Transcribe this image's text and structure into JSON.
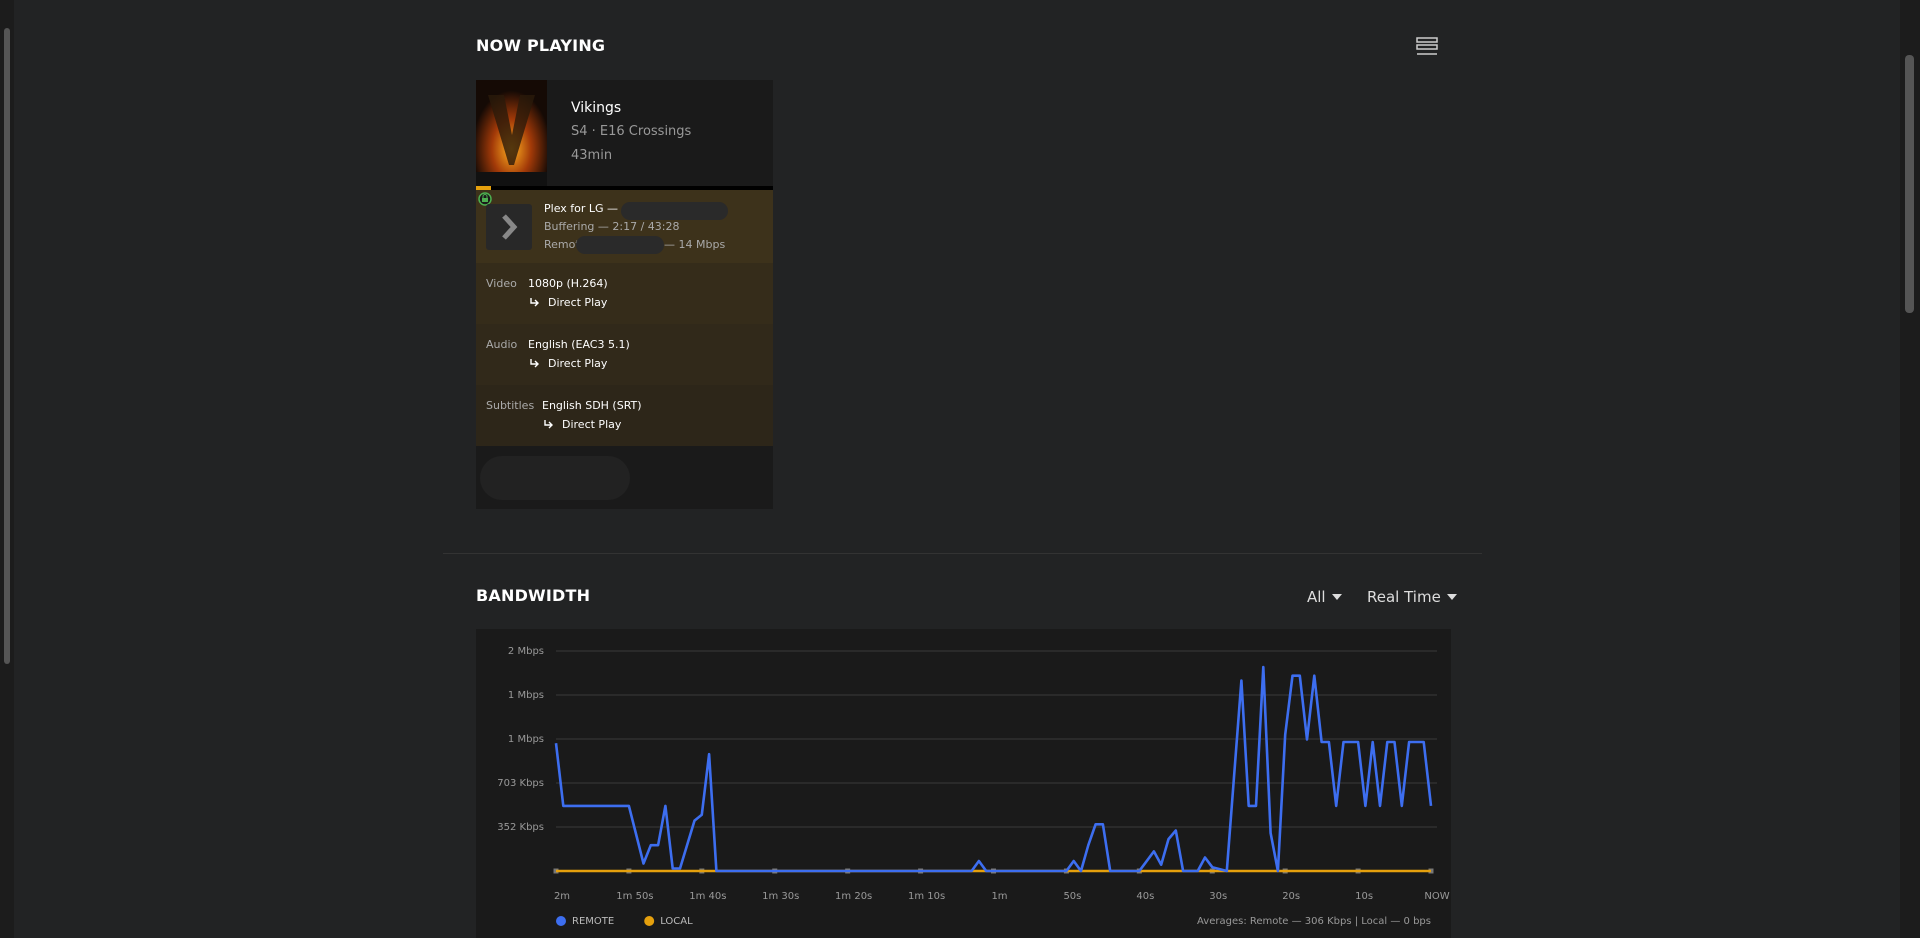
{
  "header": {
    "title": "NOW PLAYING"
  },
  "media": {
    "title": "Vikings",
    "subtitle": "S4 · E16 Crossings",
    "duration": "43min"
  },
  "player": {
    "name": "Plex for LG —",
    "state": "Buffering — 2:17 / 43:28",
    "location": "Remote",
    "bitrate": "— 14 Mbps"
  },
  "streams": [
    {
      "label": "Video",
      "value": "1080p (H.264)",
      "decision": "Direct Play"
    },
    {
      "label": "Audio",
      "value": "English (EAC3 5.1)",
      "decision": "Direct Play"
    },
    {
      "label": "Subtitles",
      "value": "English SDH (SRT)",
      "decision": "Direct Play"
    }
  ],
  "bandwidth": {
    "title": "BANDWIDTH",
    "filter": "All",
    "range": "Real Time",
    "averages": "Averages: Remote — 306 Kbps | Local — 0 bps"
  },
  "chart_data": {
    "type": "line",
    "x": [
      120,
      119,
      110,
      108,
      107,
      106,
      105,
      104,
      103,
      101,
      100,
      99,
      98,
      63,
      62,
      61,
      50,
      49,
      48,
      47,
      46,
      45,
      44,
      40,
      38,
      37,
      36,
      35,
      34,
      32,
      31,
      30,
      28,
      26,
      25,
      24,
      23,
      22,
      21,
      20,
      19,
      18,
      17,
      16,
      15,
      14,
      13,
      12,
      10,
      9,
      8,
      7,
      6,
      5,
      4,
      3,
      1,
      0
    ],
    "xlim": [
      120,
      0
    ],
    "xticks": [
      {
        "value": 120,
        "label": "2m"
      },
      {
        "value": 110,
        "label": "1m 50s"
      },
      {
        "value": 100,
        "label": "1m 40s"
      },
      {
        "value": 90,
        "label": "1m 30s"
      },
      {
        "value": 80,
        "label": "1m 20s"
      },
      {
        "value": 70,
        "label": "1m 10s"
      },
      {
        "value": 60,
        "label": "1m"
      },
      {
        "value": 50,
        "label": "50s"
      },
      {
        "value": 40,
        "label": "40s"
      },
      {
        "value": 30,
        "label": "30s"
      },
      {
        "value": 20,
        "label": "20s"
      },
      {
        "value": 10,
        "label": "10s"
      },
      {
        "value": 0,
        "label": "NOW"
      }
    ],
    "ylim": [
      0,
      1758
    ],
    "yticks": [
      {
        "value": 352,
        "label": "352 Kbps"
      },
      {
        "value": 703,
        "label": "703 Kbps"
      },
      {
        "value": 1055,
        "label": "1 Mbps"
      },
      {
        "value": 1406,
        "label": "1 Mbps"
      },
      {
        "value": 1758,
        "label": "2 Mbps"
      }
    ],
    "grid": true,
    "series": [
      {
        "name": "REMOTE",
        "color": "#3d6ef0",
        "values": [
          1021,
          520,
          520,
          60,
          206,
          206,
          520,
          20,
          20,
          403,
          450,
          933,
          0,
          0,
          80,
          0,
          0,
          80,
          0,
          206,
          373,
          373,
          0,
          0,
          157,
          50,
          255,
          324,
          0,
          0,
          108,
          30,
          0,
          1522,
          520,
          520,
          1630,
          304,
          0,
          1090,
          1561,
          1561,
          1051,
          1561,
          1031,
          1031,
          520,
          1031,
          1031,
          520,
          1031,
          520,
          1031,
          1031,
          520,
          1031,
          1031,
          520
        ]
      },
      {
        "name": "LOCAL",
        "color": "#e5a00d",
        "values": [
          0,
          0,
          0,
          0,
          0,
          0,
          0,
          0,
          0,
          0,
          0,
          0,
          0,
          0,
          0,
          0,
          0,
          0,
          0,
          0,
          0,
          0,
          0,
          0,
          0,
          0,
          0,
          0,
          0,
          0,
          0,
          0,
          0,
          0,
          0,
          0,
          0,
          0,
          0,
          0,
          0,
          0,
          0,
          0,
          0,
          0,
          0,
          0,
          0,
          0,
          0,
          0,
          0,
          0,
          0,
          0,
          0,
          0
        ]
      }
    ]
  }
}
